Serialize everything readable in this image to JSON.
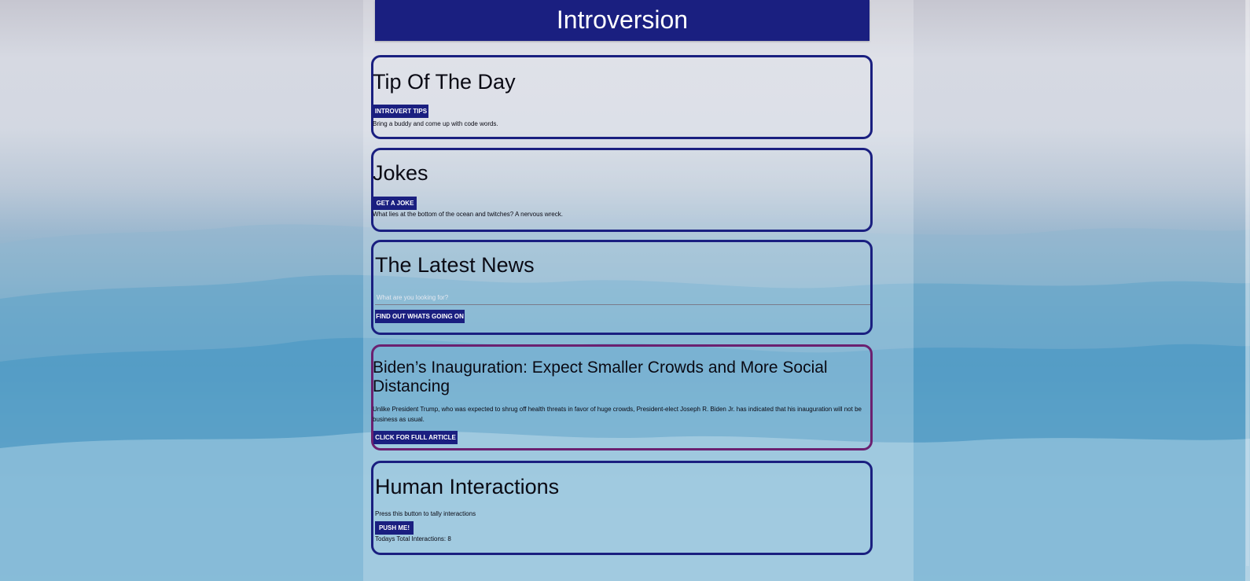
{
  "header": {
    "title": "Introversion"
  },
  "tip": {
    "title": "Tip Of The Day",
    "button_label": "INTROVERT TIPS",
    "text": "Bring a buddy and come up with code words."
  },
  "jokes": {
    "title": "Jokes",
    "button_label": "GET A JOKE",
    "text": "What lies at the bottom of the ocean and twitches? A nervous wreck."
  },
  "news": {
    "title": "The Latest News",
    "search_placeholder": "What are you looking for?",
    "search_value": "",
    "button_label": "FIND OUT WHATS GOING ON"
  },
  "article": {
    "headline": "Biden’s Inauguration: Expect Smaller Crowds and More Social Distancing",
    "summary": "Unlike President Trump, who was expected to shrug off health threats in favor of huge crowds, President-elect Joseph R. Biden Jr. has indicated that his inauguration will not be business as usual.",
    "button_label": "CLICK FOR FULL ARTICLE"
  },
  "interactions": {
    "title": "Human Interactions",
    "instruction": "Press this button to tally interactions",
    "button_label": "PUSH ME!",
    "total_label": "Todays Total Interactions: 8"
  },
  "colors": {
    "primary": "#1a1f80",
    "highlight_border": "#6b2070"
  }
}
